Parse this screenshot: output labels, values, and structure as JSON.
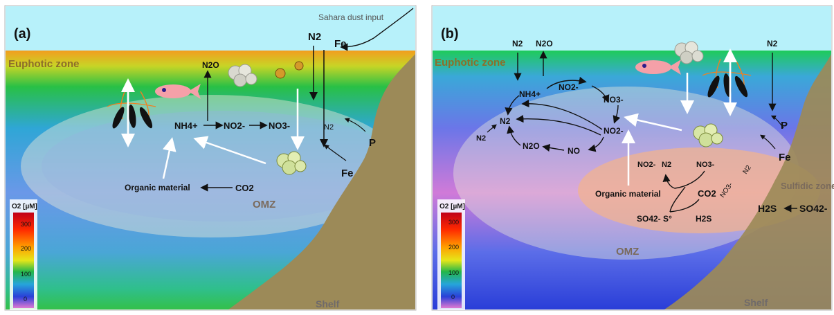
{
  "panels": {
    "a": {
      "label": "(a)",
      "dust_label": "Sahara dust input",
      "euphotic_label": "Euphotic zone",
      "omz_label": "OMZ",
      "shelf_label": "Shelf",
      "n2_surface": "N2",
      "fe_surface": "Fe",
      "n2o": "N2O",
      "nh4": "NH4+",
      "no2": "NO2-",
      "no3": "NO3-",
      "n2_inner": "N2",
      "p_label": "P",
      "fe_shelf": "Fe",
      "organic_label": "Organic material",
      "co2_label": "CO2",
      "colorbar": {
        "title": "O2 [µM]",
        "ticks": [
          "300",
          "200",
          "100",
          "0"
        ]
      }
    },
    "b": {
      "label": "(b)",
      "euphotic_label": "Euphotic zone",
      "omz_label": "OMZ",
      "shelf_label": "Shelf",
      "sulfidic_label": "Sulfidic zone",
      "n2_surface_1": "N2",
      "n2o_surface": "N2O",
      "n2_surface_2": "N2",
      "nh4": "NH4+",
      "no2_top": "NO2-",
      "no3": "NO3-",
      "n2_cycle": "N2",
      "n2_out": "N2",
      "no2_right": "NO2-",
      "n2o_cycle": "N2O",
      "no_cycle": "NO",
      "no2_lower": "NO2-",
      "n2_lower": "N2",
      "no3_lower": "NO3-",
      "organic_label": "Organic material",
      "co2_label": "CO2",
      "so4_s": "SO42- S°",
      "h2s_center": "H2S",
      "h2s_right": "H2S",
      "so4_right": "SO42-",
      "no3_n2_diag": "NO3-",
      "n2_diag": "N2",
      "p_label": "P",
      "fe_label": "Fe",
      "colorbar": {
        "title": "O2 [µM]",
        "ticks": [
          "300",
          "200",
          "100",
          "0"
        ]
      }
    }
  },
  "colors": {
    "sky": "#b7f1fa",
    "shelf": "#9c8a58",
    "omz_ellipse": "#e9e7d6",
    "sulfidic": "#f3b38a",
    "fish": "#f5a0a8"
  }
}
